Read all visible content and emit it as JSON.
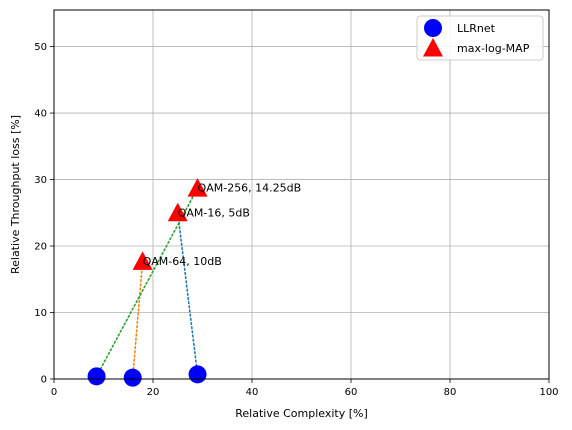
{
  "chart_data": {
    "type": "scatter",
    "xlabel": "Relative Complexity [%]",
    "ylabel": "Relative Throughput loss [%]",
    "xlim": [
      0,
      100
    ],
    "ylim": [
      0,
      55.5
    ],
    "xticks": [
      0,
      20,
      40,
      60,
      80,
      100
    ],
    "yticks": [
      0,
      10,
      20,
      30,
      40,
      50
    ],
    "grid": true,
    "legend_position": "top-right",
    "series": [
      {
        "name": "LLRnet",
        "marker": "circle",
        "color": "#0000ff",
        "points": [
          {
            "x": 8.6,
            "y": 0.4
          },
          {
            "x": 15.9,
            "y": 0.2
          },
          {
            "x": 29.0,
            "y": 0.7
          }
        ]
      },
      {
        "name": "max-log-MAP",
        "marker": "triangle",
        "color": "#ff0000",
        "points": [
          {
            "x": 17.9,
            "y": 17.7
          },
          {
            "x": 25.0,
            "y": 25.0
          },
          {
            "x": 29.0,
            "y": 28.7
          }
        ]
      }
    ],
    "connectors": [
      {
        "color": "#1f77b4",
        "from": {
          "x": 29.0,
          "y": 0.7
        },
        "to": {
          "x": 25.0,
          "y": 25.0
        }
      },
      {
        "color": "#ff7f0e",
        "from": {
          "x": 15.9,
          "y": 0.2
        },
        "to": {
          "x": 17.9,
          "y": 17.7
        }
      },
      {
        "color": "#2ca02c",
        "from": {
          "x": 8.6,
          "y": 0.4
        },
        "to": {
          "x": 29.0,
          "y": 28.7
        }
      }
    ],
    "annotations": [
      {
        "text": "QAM-256, 14.25dB",
        "x": 29.0,
        "y": 28.7
      },
      {
        "text": "QAM-16, 5dB",
        "x": 25.0,
        "y": 25.0
      },
      {
        "text": "QAM-64, 10dB",
        "x": 17.9,
        "y": 17.7
      }
    ]
  }
}
